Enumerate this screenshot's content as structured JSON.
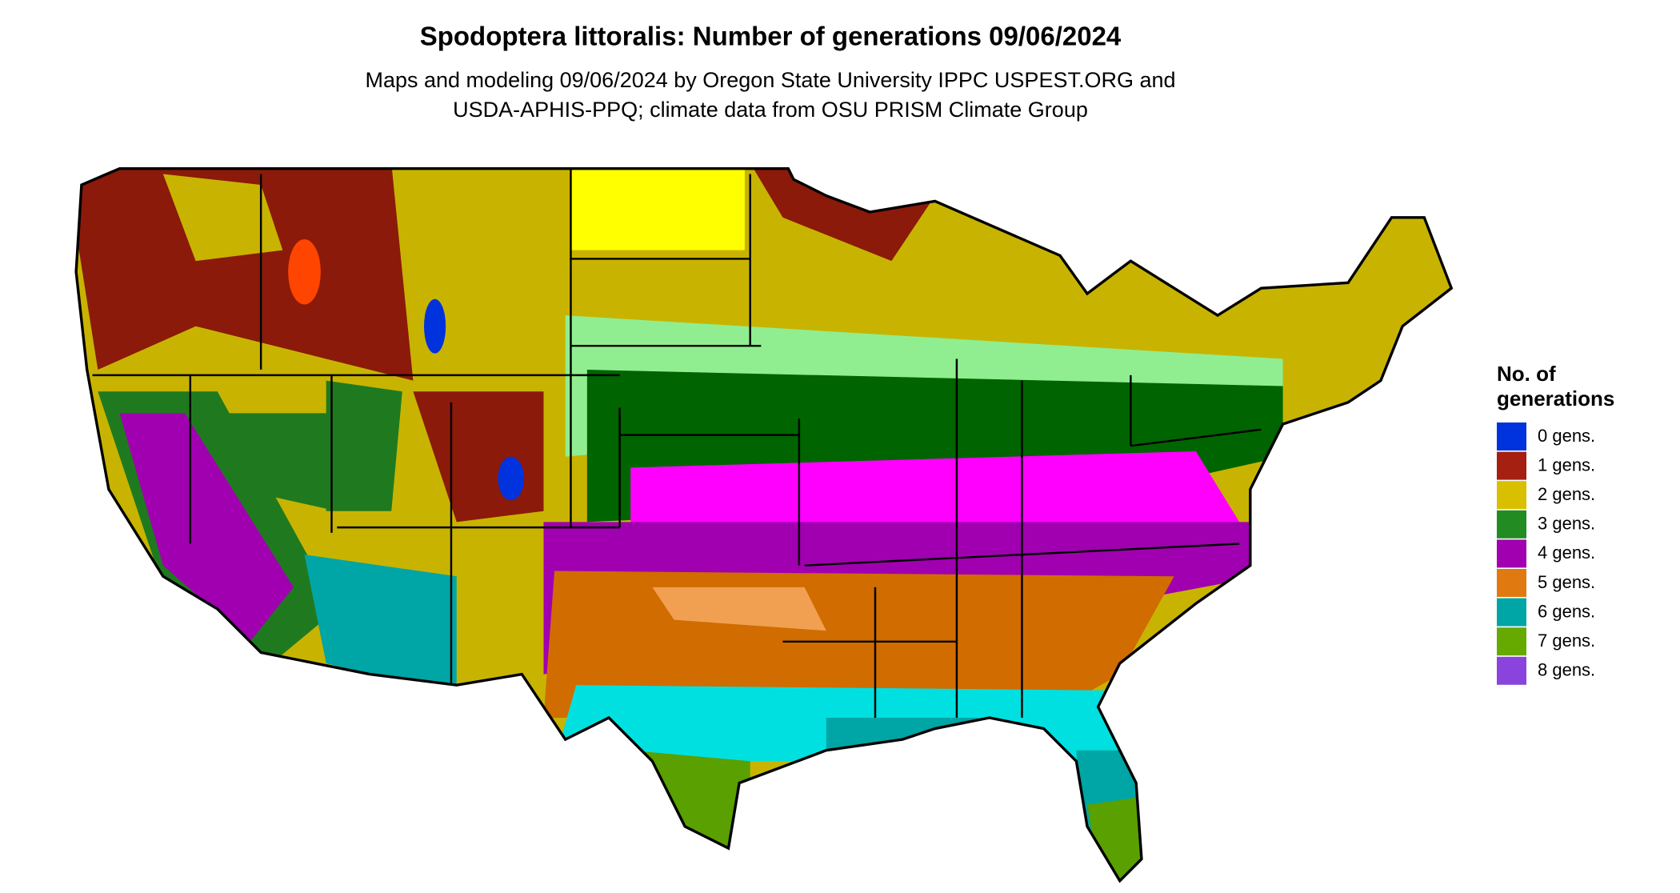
{
  "header": {
    "title": "Spodoptera littoralis: Number of generations 09/06/2024",
    "subtitle_lines": [
      "Maps and modeling 09/06/2024 by Oregon State University IPPC USPEST.ORG and",
      "USDA-APHIS-PPQ; climate data from OSU PRISM Climate Group"
    ]
  },
  "legend": {
    "title_lines": [
      "No. of",
      "generations"
    ],
    "items": [
      {
        "label": "0 gens.",
        "color": "#0033dd"
      },
      {
        "label": "1 gens.",
        "color": "#a52010"
      },
      {
        "label": "2 gens.",
        "color": "#d8c000"
      },
      {
        "label": "3 gens.",
        "color": "#228b22"
      },
      {
        "label": "4 gens.",
        "color": "#a000b0"
      },
      {
        "label": "5 gens.",
        "color": "#e07a10"
      },
      {
        "label": "6 gens.",
        "color": "#00a5a5"
      },
      {
        "label": "7 gens.",
        "color": "#66aa00"
      },
      {
        "label": "8 gens.",
        "color": "#8a44dd"
      }
    ]
  }
}
